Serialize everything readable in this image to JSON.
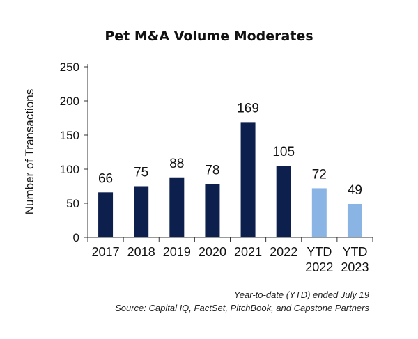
{
  "chart_data": {
    "type": "bar",
    "title": "Pet M&A Volume Moderates",
    "ylabel": "Number of Transactions",
    "xlabel": "",
    "ylim": [
      0,
      250
    ],
    "yticks": [
      0,
      50,
      100,
      150,
      200,
      250
    ],
    "grid": false,
    "categories": [
      [
        "2017"
      ],
      [
        "2018"
      ],
      [
        "2019"
      ],
      [
        "2020"
      ],
      [
        "2021"
      ],
      [
        "2022"
      ],
      [
        "YTD",
        "2022"
      ],
      [
        "YTD",
        "2023"
      ]
    ],
    "values": [
      66,
      75,
      88,
      78,
      169,
      105,
      72,
      49
    ],
    "bar_colors": [
      "#0d1f4c",
      "#0d1f4c",
      "#0d1f4c",
      "#0d1f4c",
      "#0d1f4c",
      "#0d1f4c",
      "#8ab4e4",
      "#8ab4e4"
    ],
    "data_labels": [
      "66",
      "75",
      "88",
      "78",
      "169",
      "105",
      "72",
      "49"
    ]
  },
  "notes": {
    "line1": "Year-to-date (YTD) ended July 19",
    "line2": "Source: Capital IQ, FactSet, PitchBook, and Capstone Partners"
  }
}
